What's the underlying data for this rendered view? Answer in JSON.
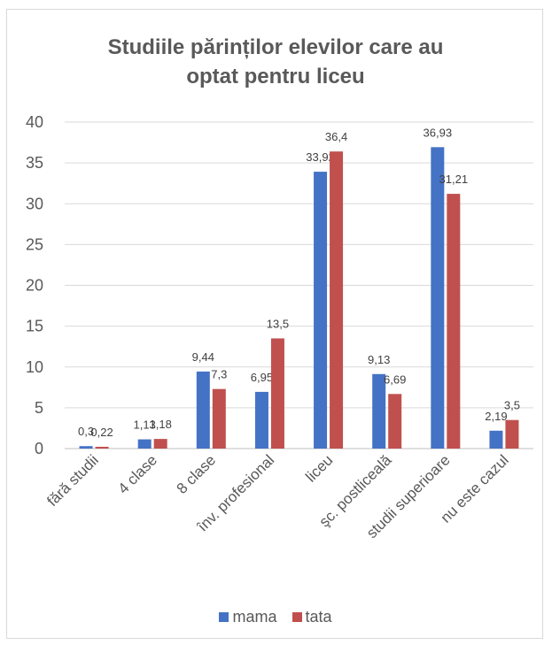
{
  "chart_data": {
    "type": "bar",
    "title_lines": [
      "Studiile părinților  elevilor care au",
      "optat pentru liceu"
    ],
    "categories": [
      "fără studii",
      "4 clase",
      "8 clase",
      "înv. profesional",
      "liceu",
      "şc. postliceală",
      "studii superioare",
      "nu este cazul"
    ],
    "series": [
      {
        "name": "mama",
        "color": "#4472c4",
        "values": [
          0.3,
          1.13,
          9.44,
          6.95,
          33.92,
          9.13,
          36.93,
          2.19
        ],
        "labels": [
          "0,3",
          "1,13",
          "9,44",
          "6,95",
          "33,92",
          "9,13",
          "36,93",
          "2,19"
        ]
      },
      {
        "name": "tata",
        "color": "#c0504d",
        "values": [
          0.22,
          1.18,
          7.3,
          13.5,
          36.4,
          6.69,
          31.21,
          3.5
        ],
        "labels": [
          "0,22",
          "1,18",
          "7,3",
          "13,5",
          "36,4",
          "6,69",
          "31,21",
          "3,5"
        ]
      }
    ],
    "ylim": [
      0,
      40
    ],
    "yticks": [
      "0",
      "5",
      "10",
      "15",
      "20",
      "25",
      "30",
      "35",
      "40"
    ],
    "grid": true,
    "legend": "bottom"
  }
}
